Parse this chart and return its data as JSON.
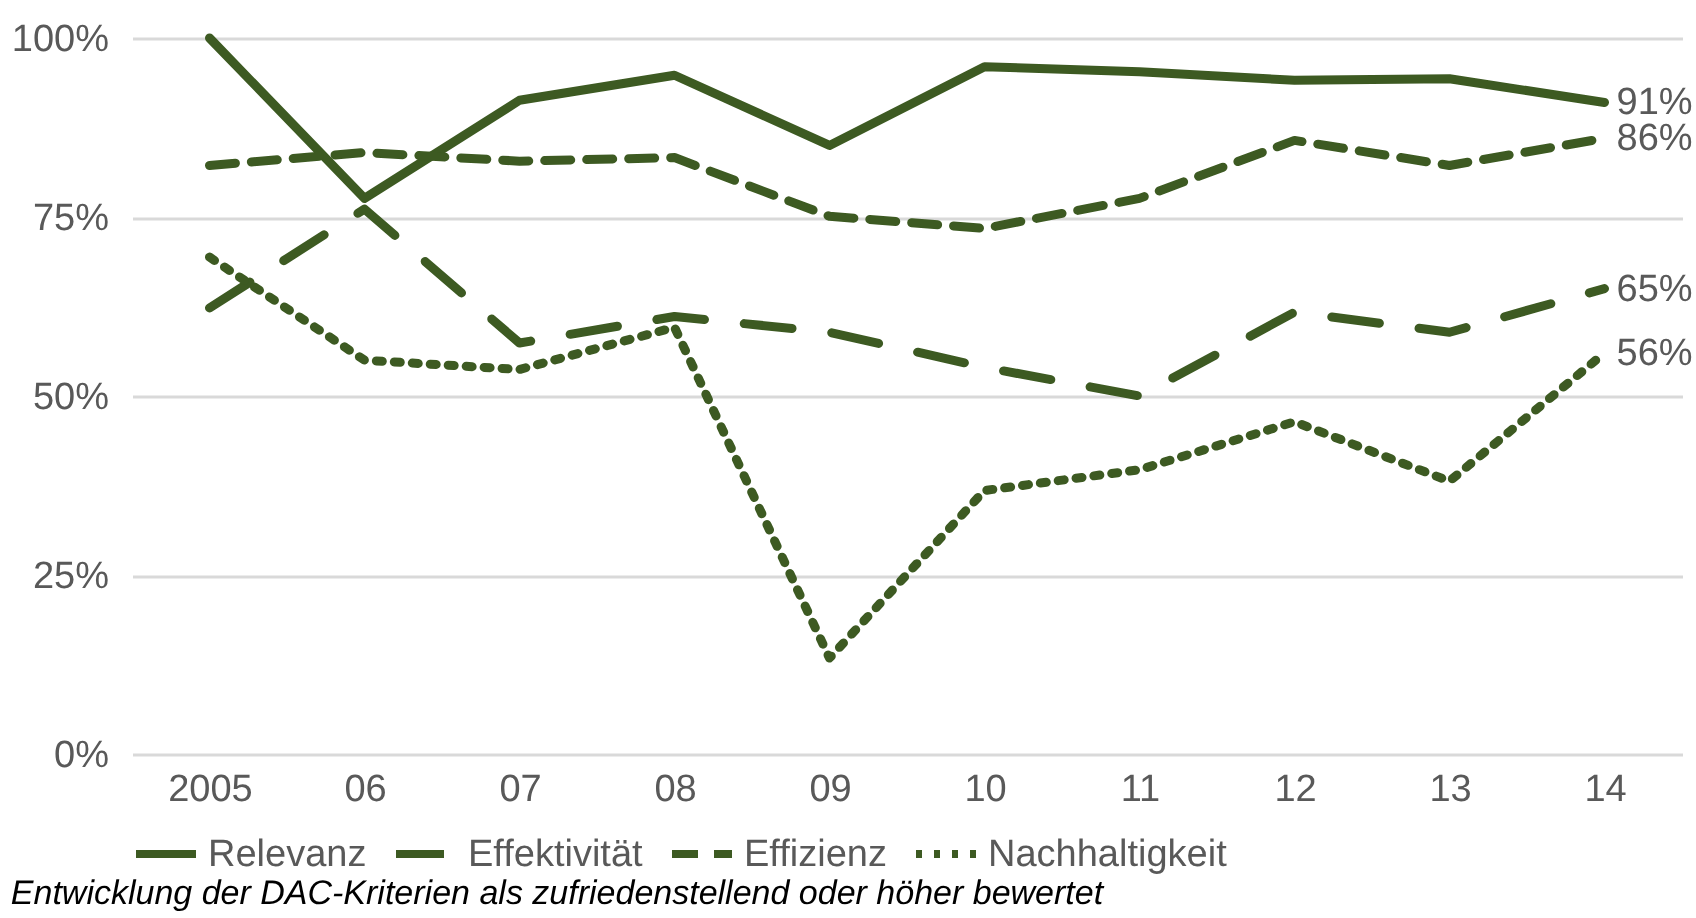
{
  "chart_data": {
    "type": "line",
    "categories": [
      "2005",
      "06",
      "07",
      "08",
      "09",
      "10",
      "11",
      "12",
      "13",
      "14"
    ],
    "ylim": [
      0,
      100
    ],
    "yticks": [
      {
        "value": 0,
        "label": "0%"
      },
      {
        "value": 25,
        "label": "25%"
      },
      {
        "value": 50,
        "label": "50%"
      },
      {
        "value": 75,
        "label": "75%"
      },
      {
        "value": 100,
        "label": "100%"
      }
    ],
    "grid": "y",
    "legend": "bottom",
    "marker": "none",
    "annotations": [
      "Entwicklung der DAC-Kriterien als zufriedenstellend oder höher bewertet"
    ],
    "series": [
      {
        "name": "Relevanz",
        "color": "#3d5a22",
        "line_style": "solid",
        "values": [
          100,
          77.6,
          91.3,
          94.8,
          85.0,
          96.0,
          95.3,
          94.1,
          94.3,
          91
        ],
        "value_labels": [
          null,
          null,
          null,
          null,
          null,
          null,
          null,
          null,
          null,
          "91%"
        ]
      },
      {
        "name": "Effektivität",
        "color": "#3d5a22",
        "line_style": "longdash",
        "values": [
          62.3,
          76.1,
          57.4,
          61.1,
          58.9,
          54.0,
          50.0,
          61.7,
          58.9,
          65
        ],
        "value_labels": [
          null,
          null,
          null,
          null,
          null,
          null,
          null,
          null,
          null,
          "65%"
        ]
      },
      {
        "name": "Effizienz",
        "color": "#3d5a22",
        "line_style": "dashed",
        "values": [
          82.2,
          84.0,
          82.8,
          83.3,
          75.1,
          73.4,
          77.6,
          85.7,
          82.2,
          86
        ],
        "value_labels": [
          null,
          null,
          null,
          null,
          null,
          null,
          null,
          null,
          null,
          "86%"
        ]
      },
      {
        "name": "Nachhaltigkeit",
        "color": "#3d5a22",
        "line_style": "dotted",
        "values": [
          69.4,
          55.0,
          53.7,
          59.6,
          13.4,
          36.8,
          39.7,
          46.4,
          38.1,
          56
        ],
        "value_labels": [
          null,
          null,
          null,
          null,
          null,
          null,
          null,
          null,
          null,
          "56%"
        ]
      }
    ]
  }
}
